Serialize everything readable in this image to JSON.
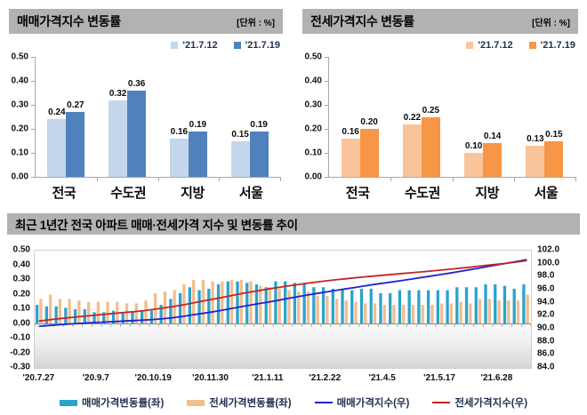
{
  "chart_data": [
    {
      "id": "sale-change-bar",
      "type": "bar",
      "title": "매매가격지수 변동률",
      "unit_label": "[단위 : %]",
      "categories": [
        "전국",
        "수도권",
        "지방",
        "서울"
      ],
      "series": [
        {
          "name": "'21.7.12",
          "color": "#c3d6eb",
          "values": [
            0.24,
            0.32,
            0.16,
            0.15
          ]
        },
        {
          "name": "'21.7.19",
          "color": "#4f81bd",
          "values": [
            0.27,
            0.36,
            0.19,
            0.19
          ]
        }
      ],
      "ylim": [
        0,
        0.5
      ],
      "ytick_labels": [
        "0.50",
        "0.40",
        "0.30",
        "0.20",
        "0.10",
        "0.00"
      ],
      "grid": false,
      "legend_position": "top-right"
    },
    {
      "id": "jeonse-change-bar",
      "type": "bar",
      "title": "전세가격지수 변동률",
      "unit_label": "[단위 : %]",
      "categories": [
        "전국",
        "수도권",
        "지방",
        "서울"
      ],
      "series": [
        {
          "name": "'21.7.12",
          "color": "#fac49a",
          "values": [
            0.16,
            0.22,
            0.1,
            0.13
          ]
        },
        {
          "name": "'21.7.19",
          "color": "#f79646",
          "values": [
            0.2,
            0.25,
            0.14,
            0.15
          ]
        }
      ],
      "ylim": [
        0,
        0.5
      ],
      "ytick_labels": [
        "0.50",
        "0.40",
        "0.30",
        "0.20",
        "0.10",
        "0.00"
      ],
      "grid": false,
      "legend_position": "top-right"
    },
    {
      "id": "trend-combo",
      "type": "combo-bar-line",
      "title": "최근 1년간 전국 아파트 매매·전세가격 지수 및 변동률 추이",
      "n_points": 52,
      "x_labels": [
        "'20.7.27",
        "'20.9.7",
        "'20.10.19",
        "'20.11.30",
        "'21.1.11",
        "'21.2.22",
        "'21.4.5",
        "'21.5.17",
        "'21.6.28"
      ],
      "x_label_indices": [
        0,
        6,
        12,
        18,
        24,
        30,
        36,
        42,
        48
      ],
      "left_axis": {
        "min": -0.3,
        "max": 0.5,
        "step": 0.1,
        "tick_labels": [
          "0.50",
          "0.40",
          "0.30",
          "0.20",
          "0.10",
          "0.00",
          "-0.10",
          "-0.20",
          "-0.30"
        ]
      },
      "right_axis": {
        "min": 84.0,
        "max": 102.0,
        "step": 2.0,
        "tick_labels": [
          "102.0",
          "100.0",
          "98.0",
          "96.0",
          "94.0",
          "92.0",
          "90.0",
          "88.0",
          "86.0",
          "84.0"
        ]
      },
      "bar_series": [
        {
          "name": "매매가격변동률(좌)",
          "color": "#2ba3cb",
          "axis": "left",
          "values": [
            0.13,
            0.12,
            0.12,
            0.11,
            0.1,
            0.1,
            0.08,
            0.08,
            0.09,
            0.08,
            0.08,
            0.09,
            0.09,
            0.13,
            0.17,
            0.21,
            0.25,
            0.23,
            0.24,
            0.27,
            0.29,
            0.29,
            0.28,
            0.27,
            0.25,
            0.29,
            0.29,
            0.28,
            0.27,
            0.25,
            0.25,
            0.24,
            0.24,
            0.23,
            0.24,
            0.24,
            0.21,
            0.21,
            0.23,
            0.23,
            0.23,
            0.23,
            0.23,
            0.23,
            0.25,
            0.25,
            0.25,
            0.27,
            0.27,
            0.26,
            0.24,
            0.27
          ]
        },
        {
          "name": "전세가격변동률(좌)",
          "color": "#f2bd8f",
          "axis": "left",
          "values": [
            0.17,
            0.2,
            0.17,
            0.17,
            0.16,
            0.15,
            0.15,
            0.15,
            0.15,
            0.14,
            0.14,
            0.16,
            0.21,
            0.22,
            0.23,
            0.27,
            0.3,
            0.3,
            0.29,
            0.29,
            0.3,
            0.3,
            0.29,
            0.26,
            0.25,
            0.24,
            0.23,
            0.22,
            0.22,
            0.19,
            0.19,
            0.17,
            0.16,
            0.15,
            0.14,
            0.14,
            0.13,
            0.13,
            0.13,
            0.13,
            0.13,
            0.13,
            0.14,
            0.14,
            0.15,
            0.14,
            0.17,
            0.17,
            0.16,
            0.16,
            0.16,
            0.2
          ]
        }
      ],
      "line_series": [
        {
          "name": "매매가격지수(우)",
          "color": "#2121cc",
          "axis": "right",
          "values": [
            90.4,
            90.51,
            90.62,
            90.72,
            90.81,
            90.9,
            90.97,
            91.04,
            91.12,
            91.2,
            91.27,
            91.35,
            91.43,
            91.55,
            91.71,
            91.9,
            92.13,
            92.34,
            92.56,
            92.81,
            93.08,
            93.35,
            93.61,
            93.87,
            94.1,
            94.37,
            94.65,
            94.91,
            95.17,
            95.41,
            95.65,
            95.88,
            96.11,
            96.33,
            96.56,
            96.79,
            96.99,
            97.2,
            97.42,
            97.64,
            97.87,
            98.09,
            98.32,
            98.55,
            98.79,
            99.04,
            99.29,
            99.56,
            99.82,
            100.08,
            100.32,
            100.59
          ]
        },
        {
          "name": "전세가격지수(우)",
          "color": "#c22424",
          "axis": "right",
          "values": [
            91.2,
            91.38,
            91.54,
            91.69,
            91.84,
            91.98,
            92.12,
            92.25,
            92.39,
            92.52,
            92.65,
            92.8,
            92.99,
            93.2,
            93.41,
            93.66,
            93.94,
            94.23,
            94.5,
            94.77,
            95.06,
            95.34,
            95.62,
            95.87,
            96.11,
            96.34,
            96.56,
            96.77,
            96.98,
            97.17,
            97.35,
            97.52,
            97.67,
            97.82,
            97.96,
            98.09,
            98.22,
            98.35,
            98.48,
            98.6,
            98.73,
            98.86,
            99.0,
            99.14,
            99.29,
            99.43,
            99.6,
            99.76,
            99.92,
            100.08,
            100.24,
            100.44
          ]
        }
      ],
      "grid": false,
      "legend_position": "bottom-center"
    }
  ],
  "style_tokens": {
    "header_background": "#b2b2b2",
    "legend_text_color": "#1f3050",
    "axis_line_color": "#a8a8a8"
  }
}
